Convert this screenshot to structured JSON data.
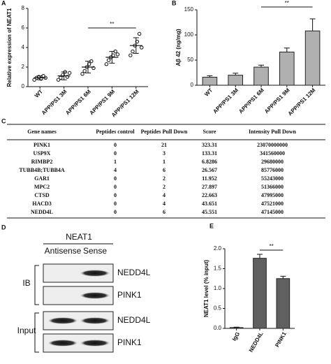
{
  "chart_data": [
    {
      "type": "dot",
      "panel": "A",
      "ylabel": "Relative expression of NEAT1",
      "categories": [
        "WT",
        "APP/PS1 3M",
        "APP/PS1 6M",
        "APP/PS1 9M",
        "APP/PS1 12M"
      ],
      "points": [
        [
          0.7,
          0.9,
          1.0,
          0.8,
          1.1,
          0.9
        ],
        [
          0.7,
          0.9,
          1.2,
          1.5,
          1.0,
          1.4
        ],
        [
          1.3,
          1.6,
          2.0,
          2.3,
          2.6,
          1.9
        ],
        [
          2.3,
          2.7,
          3.0,
          3.2,
          3.6,
          3.3
        ],
        [
          3.2,
          3.6,
          4.2,
          4.6,
          5.4,
          4.0
        ]
      ],
      "means": [
        0.9,
        1.1,
        2.0,
        3.0,
        4.2
      ],
      "sd": [
        0.2,
        0.4,
        0.6,
        0.6,
        0.8
      ],
      "color": "#222222",
      "ylim": [
        0,
        8
      ],
      "yticks": [
        0,
        2,
        4,
        6,
        8
      ],
      "significance": [
        {
          "from": 2,
          "to": 4,
          "label": "**"
        }
      ]
    },
    {
      "type": "bar",
      "panel": "B",
      "ylabel": "Aβ 42 (ng/mg)",
      "categories": [
        "WT",
        "APP/PS1 3M",
        "APP/PS1 6M",
        "APP/PS1 9M",
        "APP/PS1 12M"
      ],
      "values": [
        16,
        20,
        36,
        66,
        108
      ],
      "errors": [
        3,
        4,
        4,
        8,
        24
      ],
      "color": "#b0b0b0",
      "ylim": [
        0,
        150
      ],
      "yticks": [
        0,
        50,
        100,
        150
      ],
      "significance": [
        {
          "from": 2,
          "to": 4,
          "label": "**"
        }
      ]
    },
    {
      "type": "bar",
      "panel": "E",
      "ylabel": "NEAT1 level (% input)",
      "categories": [
        "IgG",
        "NEDD4L",
        "PINK1"
      ],
      "values": [
        0.02,
        1.76,
        1.25
      ],
      "errors": [
        0.01,
        0.1,
        0.06
      ],
      "color": "#606060",
      "ylim": [
        0,
        2
      ],
      "yticks": [
        {
          "value": 0,
          "label": "0.0"
        },
        {
          "value": 0.5,
          "label": "0.5"
        },
        {
          "value": 1,
          "label": "1.0"
        },
        {
          "value": 1.5,
          "label": "1.5"
        },
        {
          "value": 2,
          "label": "2.0"
        }
      ],
      "significance": [
        {
          "from": 1,
          "to": 2,
          "label": "**"
        }
      ]
    }
  ],
  "table": {
    "panel": "C",
    "header": [
      "Gene names",
      "Peptides control",
      "Peptides Pull Down",
      "Score",
      "Intensity Pull Down"
    ],
    "rows": [
      [
        "PINK1",
        0,
        21,
        323.31,
        23070000000
      ],
      [
        "USP9X",
        0,
        3,
        133.31,
        341560000
      ],
      [
        "RIMBP2",
        1,
        1,
        6.8286,
        29680000
      ],
      [
        "TUBB4B;TUBB4A",
        4,
        6,
        26.567,
        85776000
      ],
      [
        "GAR1",
        0,
        2,
        11.952,
        55243000
      ],
      [
        "MPC2",
        0,
        2,
        27.897,
        51366000
      ],
      [
        "CTSD",
        0,
        4,
        22.663,
        47995000
      ],
      [
        "HACD3",
        0,
        4,
        43.651,
        47521000
      ],
      [
        "NEDD4L",
        0,
        6,
        45.551,
        47145000
      ]
    ]
  },
  "blot": {
    "panel": "D",
    "probe": "NEAT1",
    "lanes": [
      "Antisense",
      "Sense"
    ],
    "groups": [
      {
        "label": "IB",
        "bands": [
          "NEDD4L",
          "PINK1"
        ]
      },
      {
        "label": "Input",
        "bands": [
          "NEDD4L",
          "PINK1"
        ]
      }
    ]
  }
}
